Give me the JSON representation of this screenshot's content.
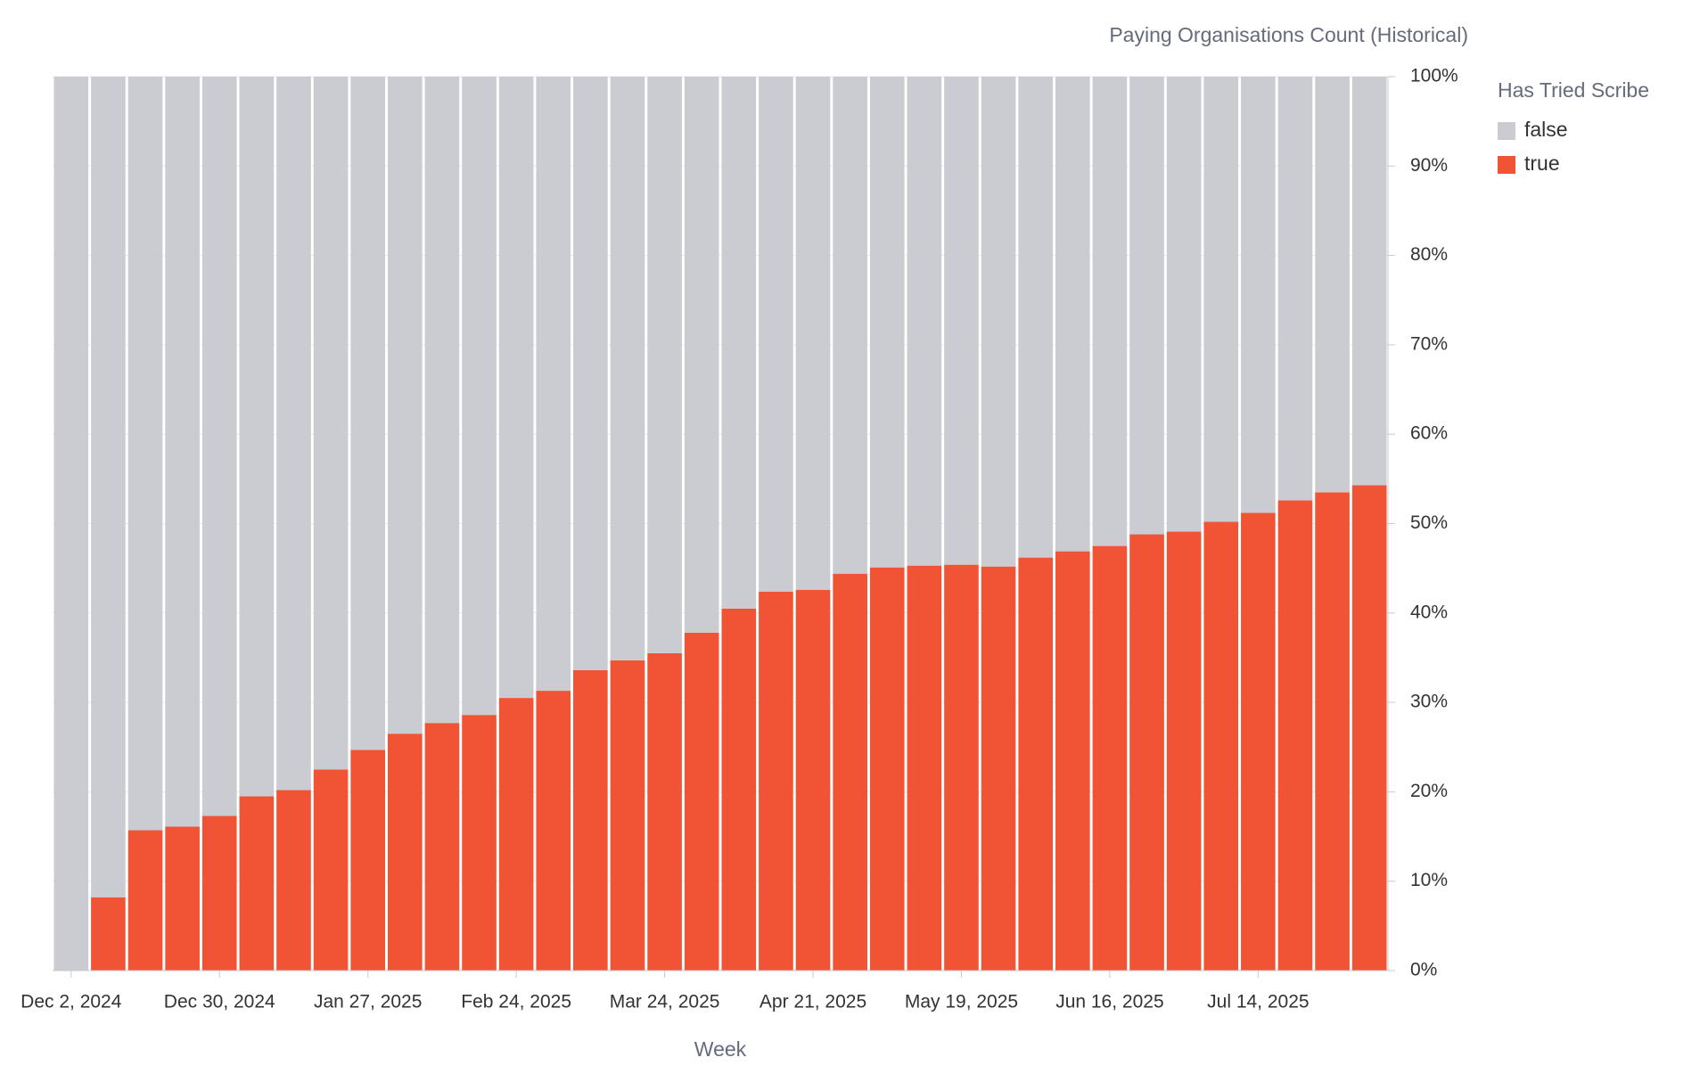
{
  "chart_data": {
    "type": "stacked_bar",
    "title": "Paying Organisations Count (Historical)",
    "x_label": "Week",
    "legend_title": "Has Tried Scribe",
    "legend_position": "right",
    "categories": [
      "Dec 2, 2024",
      null,
      null,
      null,
      "Dec 30, 2024",
      null,
      null,
      null,
      "Jan 27, 2025",
      null,
      null,
      null,
      "Feb 24, 2025",
      null,
      null,
      null,
      "Mar 24, 2025",
      null,
      null,
      null,
      "Apr 21, 2025",
      null,
      null,
      null,
      "May 19, 2025",
      null,
      null,
      null,
      "Jun 16, 2025",
      null,
      null,
      null,
      "Jul 14, 2025",
      null,
      null,
      null
    ],
    "series": [
      {
        "name": "false",
        "color": "#cbcbd2",
        "values": [
          100,
          91.8,
          84.3,
          83.9,
          82.7,
          80.5,
          79.8,
          77.5,
          75.3,
          73.5,
          72.3,
          71.4,
          69.5,
          68.7,
          66.4,
          65.3,
          64.5,
          62.2,
          59.5,
          57.6,
          57.4,
          55.6,
          54.9,
          54.7,
          54.6,
          54.8,
          53.8,
          53.1,
          52.5,
          51.2,
          50.9,
          49.8,
          48.8,
          47.4,
          46.5,
          45.7
        ]
      },
      {
        "name": "true",
        "color": "#f05434",
        "values": [
          0,
          8.2,
          15.7,
          16.1,
          17.3,
          19.5,
          20.2,
          22.5,
          24.7,
          26.5,
          27.7,
          28.6,
          30.5,
          31.3,
          33.6,
          34.7,
          35.5,
          37.8,
          40.5,
          42.4,
          42.6,
          44.4,
          45.1,
          45.3,
          45.4,
          45.2,
          46.2,
          46.9,
          47.5,
          48.8,
          49.1,
          50.2,
          51.2,
          52.6,
          53.5,
          54.3
        ]
      }
    ],
    "ylim": [
      0,
      100
    ],
    "yticks": [
      {
        "value": 0,
        "label": "0%"
      },
      {
        "value": 10,
        "label": "10%"
      },
      {
        "value": 20,
        "label": "20%"
      },
      {
        "value": 30,
        "label": "30%"
      },
      {
        "value": 40,
        "label": "40%"
      },
      {
        "value": 50,
        "label": "50%"
      },
      {
        "value": 60,
        "label": "60%"
      },
      {
        "value": 70,
        "label": "70%"
      },
      {
        "value": 80,
        "label": "80%"
      },
      {
        "value": 90,
        "label": "90%"
      },
      {
        "value": 100,
        "label": "100%"
      }
    ],
    "y_axis_side": "right",
    "grid": true
  }
}
